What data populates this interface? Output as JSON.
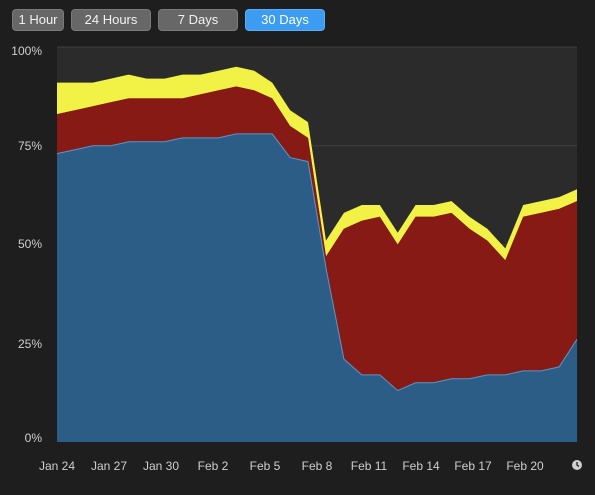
{
  "range_tabs": {
    "items": [
      {
        "label": "1 Hour",
        "active": false
      },
      {
        "label": "24 Hours",
        "active": false
      },
      {
        "label": "7 Days",
        "active": false
      },
      {
        "label": "30 Days",
        "active": true
      }
    ]
  },
  "colors": {
    "background": "#1e1e1e",
    "plot_background": "#2b2b2b",
    "app_memory": "#2b5d86",
    "app_memory_line": "#5c95c8",
    "wired_memory": "#881a16",
    "compressed": "#f1f245",
    "grid": "#3f3f3f",
    "active_tab": "#3b9cf2"
  },
  "chart_data": {
    "type": "area",
    "stacked": true,
    "title": "",
    "xlabel": "",
    "ylabel": "",
    "ylim": [
      0,
      100
    ],
    "y_ticks": [
      "0%",
      "25%",
      "50%",
      "75%",
      "100%"
    ],
    "x_ticks": [
      "Jan 24",
      "Jan 27",
      "Jan 30",
      "Feb 2",
      "Feb 5",
      "Feb 8",
      "Feb 11",
      "Feb 14",
      "Feb 17",
      "Feb 20"
    ],
    "x": [
      "Jan 24",
      "Jan 25",
      "Jan 26",
      "Jan 27",
      "Jan 28",
      "Jan 29",
      "Jan 30",
      "Jan 31",
      "Feb 1",
      "Feb 2",
      "Feb 3",
      "Feb 4",
      "Feb 5",
      "Feb 6",
      "Feb 7",
      "Feb 8",
      "Feb 9",
      "Feb 10",
      "Feb 11",
      "Feb 12",
      "Feb 13",
      "Feb 14",
      "Feb 15",
      "Feb 16",
      "Feb 17",
      "Feb 18",
      "Feb 19",
      "Feb 20",
      "Feb 21",
      "Feb 22"
    ],
    "series": [
      {
        "values": [
          73,
          74,
          75,
          75,
          76,
          76,
          76,
          77,
          77,
          77,
          78,
          78,
          78,
          72,
          71,
          44,
          21,
          17,
          17,
          13,
          15,
          15,
          16,
          16,
          17,
          17,
          18,
          18,
          19,
          26
        ]
      },
      {
        "values": [
          10,
          10,
          10,
          11,
          11,
          11,
          11,
          10,
          11,
          12,
          12,
          11,
          9,
          8,
          6,
          3,
          33,
          39,
          40,
          37,
          42,
          42,
          42,
          38,
          34,
          29,
          39,
          40,
          40,
          35
        ]
      },
      {
        "values": [
          8,
          7,
          6,
          6,
          6,
          5,
          5,
          6,
          5,
          5,
          5,
          5,
          4,
          4,
          4,
          4,
          4,
          4,
          3,
          3,
          3,
          3,
          3,
          3,
          3,
          3,
          3,
          3,
          3,
          3
        ]
      }
    ]
  }
}
